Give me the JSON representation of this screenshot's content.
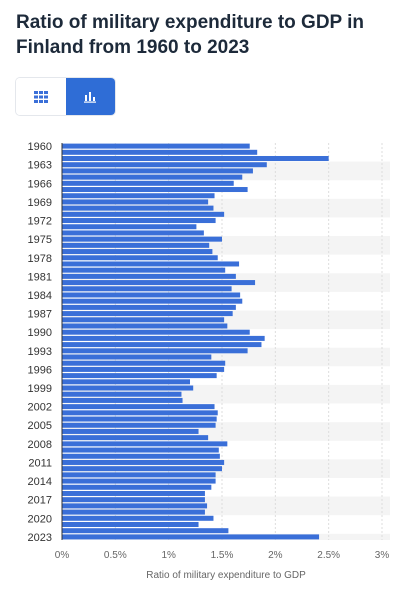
{
  "page": {
    "title": "Ratio of military expenditure to GDP in Finland from 1960 to 2023",
    "view_toggle": [
      {
        "label": "table-view",
        "icon": "grid-icon",
        "active": false
      },
      {
        "label": "chart-view",
        "icon": "bar-chart-icon",
        "active": true
      }
    ],
    "colors": {
      "bar": "#3a6fd8",
      "accent": "#2f6dd6",
      "band": "#f4f4f4"
    }
  },
  "chart_data": {
    "type": "bar",
    "orientation": "horizontal",
    "title": "Ratio of military expenditure to GDP in Finland from 1960 to 2023",
    "xlabel": "Ratio of military expenditure to GDP",
    "ylabel": "",
    "xlim": [
      0,
      3
    ],
    "x_ticks": [
      "0%",
      "0.5%",
      "1%",
      "1.5%",
      "2%",
      "2.5%",
      "3%"
    ],
    "categories": [
      "1960",
      "1961",
      "1962",
      "1963",
      "1964",
      "1965",
      "1966",
      "1967",
      "1968",
      "1969",
      "1970",
      "1971",
      "1972",
      "1973",
      "1974",
      "1975",
      "1976",
      "1977",
      "1978",
      "1979",
      "1980",
      "1981",
      "1982",
      "1983",
      "1984",
      "1985",
      "1986",
      "1987",
      "1988",
      "1989",
      "1990",
      "1991",
      "1992",
      "1993",
      "1994",
      "1995",
      "1996",
      "1997",
      "1998",
      "1999",
      "2000",
      "2001",
      "2002",
      "2003",
      "2004",
      "2005",
      "2006",
      "2007",
      "2008",
      "2009",
      "2010",
      "2011",
      "2012",
      "2013",
      "2014",
      "2015",
      "2016",
      "2017",
      "2018",
      "2019",
      "2020",
      "2021",
      "2022",
      "2023"
    ],
    "labeled_categories": [
      "1960",
      "1963",
      "1966",
      "1969",
      "1972",
      "1975",
      "1978",
      "1981",
      "1984",
      "1987",
      "1990",
      "1993",
      "1996",
      "1999",
      "2002",
      "2005",
      "2008",
      "2011",
      "2014",
      "2017",
      "2020",
      "2023"
    ],
    "values": [
      1.76,
      1.83,
      2.5,
      1.92,
      1.79,
      1.69,
      1.61,
      1.74,
      1.43,
      1.37,
      1.42,
      1.52,
      1.44,
      1.26,
      1.33,
      1.5,
      1.38,
      1.41,
      1.46,
      1.66,
      1.53,
      1.63,
      1.81,
      1.59,
      1.67,
      1.69,
      1.63,
      1.6,
      1.52,
      1.55,
      1.76,
      1.9,
      1.87,
      1.74,
      1.4,
      1.53,
      1.52,
      1.45,
      1.2,
      1.23,
      1.12,
      1.13,
      1.43,
      1.46,
      1.45,
      1.44,
      1.28,
      1.37,
      1.55,
      1.47,
      1.48,
      1.52,
      1.5,
      1.44,
      1.44,
      1.4,
      1.34,
      1.34,
      1.36,
      1.34,
      1.42,
      1.28,
      1.56,
      2.41
    ]
  }
}
